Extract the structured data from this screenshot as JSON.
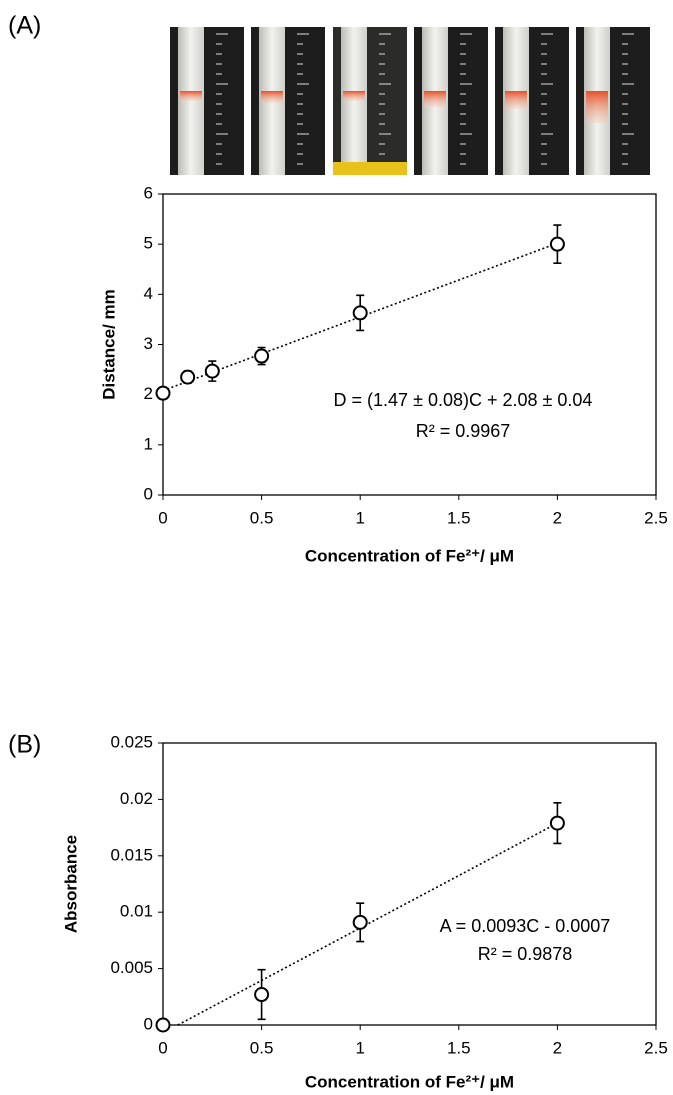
{
  "chart_data": [
    {
      "type": "scatter",
      "panel_label": "(A)",
      "x_label": "Concentration of Fe²⁺/ μM",
      "y_label": "Distance/ mm",
      "x": [
        0,
        0.125,
        0.25,
        0.5,
        1,
        2
      ],
      "series": [
        {
          "values": [
            2.03,
            2.35,
            2.47,
            2.77,
            3.63,
            5.0
          ],
          "errors": [
            null,
            0.12,
            0.2,
            0.17,
            0.35,
            0.38
          ],
          "color": "#000000"
        }
      ],
      "trendline": {
        "slope": 1.47,
        "intercept": 2.08
      },
      "annotations": [
        "D = (1.47 ± 0.08)C + 2.08 ± 0.04",
        "R² = 0.9967"
      ],
      "xlim": [
        0,
        2.5
      ],
      "xticks": [
        0,
        0.5,
        1,
        1.5,
        2,
        2.5
      ],
      "ylim": [
        0,
        6
      ],
      "yticks": [
        0,
        1,
        2,
        3,
        4,
        5,
        6
      ]
    },
    {
      "type": "scatter",
      "panel_label": "(B)",
      "x_label": "Concentration of Fe²⁺/ μM",
      "y_label": "Absorbance",
      "x": [
        0,
        0.5,
        1,
        2
      ],
      "series": [
        {
          "values": [
            0,
            0.0027,
            0.0091,
            0.0179
          ],
          "errors": [
            null,
            0.0022,
            0.0017,
            0.0018
          ],
          "color": "#000000"
        }
      ],
      "trendline": {
        "slope": 0.0093,
        "intercept": -0.0007
      },
      "annotations": [
        "A = 0.0093C - 0.0007",
        "R² = 0.9878"
      ],
      "xlim": [
        0,
        2.5
      ],
      "xticks": [
        0,
        0.5,
        1,
        1.5,
        2,
        2.5
      ],
      "ylim": [
        0,
        0.025
      ],
      "yticks": [
        0,
        0.005,
        0.01,
        0.015,
        0.02,
        0.025
      ]
    }
  ]
}
